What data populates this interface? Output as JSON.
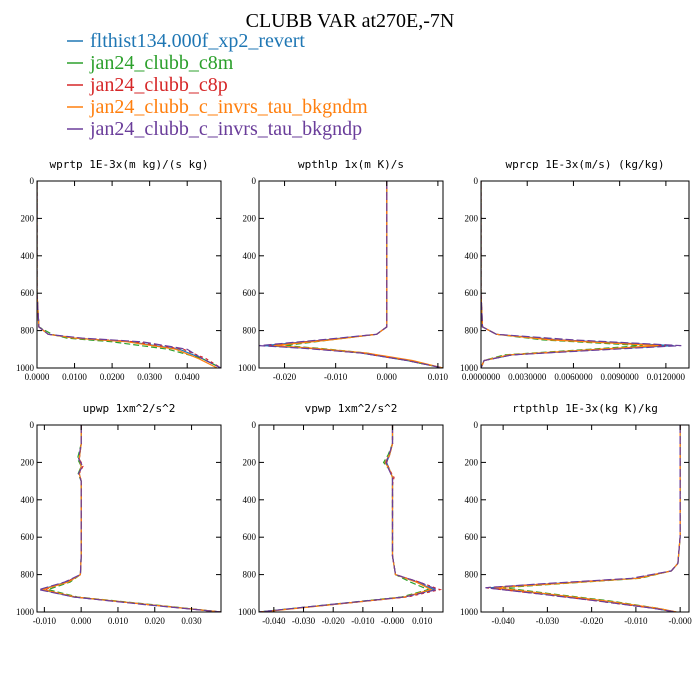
{
  "title": "CLUBB VAR at270E,-7N",
  "legend": [
    {
      "label": "flthist134.000f_xp2_revert",
      "color": "#1f77b4",
      "dash": ""
    },
    {
      "label": "jan24_clubb_c8m",
      "color": "#2ca02c",
      "dash": "6,3"
    },
    {
      "label": "jan24_clubb_c8p",
      "color": "#d62728",
      "dash": "3,3"
    },
    {
      "label": "jan24_clubb_c_invrs_tau_bkgndm",
      "color": "#ff7f0e",
      "dash": ""
    },
    {
      "label": "jan24_clubb_c_invrs_tau_bkgndp",
      "color": "#6a3d9a",
      "dash": "8,3"
    }
  ],
  "chart_data": [
    {
      "type": "line",
      "title": "wprtp  1E-3x(m kg)/(s kg)",
      "xlim": [
        0.0,
        0.049
      ],
      "ylim": [
        1000,
        0
      ],
      "xticks": [
        0.0,
        0.01,
        0.02,
        0.03,
        0.04
      ],
      "xtick_labels": [
        "0.0000",
        "0.0100",
        "0.0200",
        "0.0300",
        "0.0400"
      ],
      "yticks": [
        0,
        200,
        400,
        600,
        800,
        1000
      ],
      "series": [
        {
          "y": [
            0,
            200,
            400,
            600,
            780,
            820,
            840,
            860,
            900,
            950,
            1000
          ],
          "x": [
            0.0,
            0.0,
            0.0,
            0.0,
            0.0005,
            0.003,
            0.01,
            0.025,
            0.038,
            0.044,
            0.049
          ]
        },
        {
          "y": [
            0,
            200,
            400,
            600,
            780,
            820,
            840,
            860,
            900,
            950,
            1000
          ],
          "x": [
            0.0,
            0.0,
            0.0,
            0.0,
            0.0005,
            0.004,
            0.008,
            0.02,
            0.035,
            0.044,
            0.049
          ]
        },
        {
          "y": [
            0,
            200,
            400,
            600,
            780,
            820,
            840,
            860,
            900,
            950,
            1000
          ],
          "x": [
            0.0,
            0.0,
            0.0,
            0.0,
            0.0005,
            0.003,
            0.011,
            0.026,
            0.039,
            0.045,
            0.049
          ]
        },
        {
          "y": [
            0,
            200,
            400,
            600,
            780,
            820,
            840,
            860,
            900,
            950,
            1000
          ],
          "x": [
            0.0,
            0.0,
            0.0,
            0.0,
            0.0005,
            0.003,
            0.01,
            0.024,
            0.037,
            0.043,
            0.048
          ]
        },
        {
          "y": [
            0,
            200,
            400,
            600,
            780,
            820,
            840,
            860,
            900,
            950,
            1000
          ],
          "x": [
            0.0,
            0.0,
            0.0,
            0.0,
            0.0005,
            0.003,
            0.012,
            0.028,
            0.04,
            0.044,
            0.049
          ]
        }
      ]
    },
    {
      "type": "line",
      "title": "wpthlp  1x(m K)/s",
      "xlim": [
        -0.025,
        0.011
      ],
      "ylim": [
        1000,
        0
      ],
      "xticks": [
        -0.02,
        -0.01,
        0.0,
        0.01
      ],
      "xtick_labels": [
        "-0.020",
        "-0.010",
        "0.000",
        "0.010"
      ],
      "yticks": [
        0,
        200,
        400,
        600,
        800,
        1000
      ],
      "series": [
        {
          "y": [
            0,
            200,
            400,
            600,
            780,
            820,
            850,
            880,
            895,
            920,
            960,
            1000
          ],
          "x": [
            0.0,
            0.0,
            0.0,
            0.0,
            0.0,
            -0.002,
            -0.012,
            -0.024,
            -0.015,
            -0.005,
            0.004,
            0.011
          ]
        },
        {
          "y": [
            0,
            200,
            400,
            600,
            780,
            820,
            850,
            880,
            895,
            920,
            960,
            1000
          ],
          "x": [
            0.0,
            0.0,
            0.0,
            0.0,
            0.0,
            -0.002,
            -0.011,
            -0.02,
            -0.013,
            -0.004,
            0.004,
            0.011
          ]
        },
        {
          "y": [
            0,
            200,
            400,
            600,
            780,
            820,
            850,
            880,
            895,
            920,
            960,
            1000
          ],
          "x": [
            0.0,
            0.0,
            0.0,
            0.0,
            0.0,
            -0.002,
            -0.012,
            -0.023,
            -0.015,
            -0.005,
            0.004,
            0.011
          ]
        },
        {
          "y": [
            0,
            200,
            400,
            600,
            780,
            820,
            850,
            880,
            895,
            920,
            960,
            1000
          ],
          "x": [
            0.0,
            0.0,
            0.0,
            0.0,
            0.0,
            -0.002,
            -0.011,
            -0.022,
            -0.014,
            -0.004,
            0.005,
            0.011
          ]
        },
        {
          "y": [
            0,
            200,
            400,
            600,
            780,
            820,
            850,
            880,
            895,
            920,
            960,
            1000
          ],
          "x": [
            0.0,
            0.0,
            0.0,
            0.0,
            0.0,
            -0.002,
            -0.013,
            -0.025,
            -0.016,
            -0.005,
            0.004,
            0.011
          ]
        }
      ]
    },
    {
      "type": "line",
      "title": "wprcp  1E-3x(m/s) (kg/kg)",
      "xlim": [
        0.0,
        0.0135
      ],
      "ylim": [
        1000,
        0
      ],
      "xticks": [
        0.0,
        0.003,
        0.006,
        0.009,
        0.012
      ],
      "xtick_labels": [
        "0.0000000",
        "0.0030000",
        "0.0060000",
        "0.0090000",
        "0.0120000"
      ],
      "yticks": [
        0,
        200,
        400,
        600,
        800,
        1000
      ],
      "series": [
        {
          "y": [
            0,
            200,
            400,
            600,
            780,
            820,
            850,
            880,
            900,
            930,
            960,
            1000
          ],
          "x": [
            0.0,
            0.0,
            0.0,
            0.0,
            0.0001,
            0.001,
            0.005,
            0.0125,
            0.008,
            0.002,
            0.0002,
            0.0
          ]
        },
        {
          "y": [
            0,
            200,
            400,
            600,
            780,
            820,
            850,
            880,
            900,
            930,
            960,
            1000
          ],
          "x": [
            0.0,
            0.0,
            0.0,
            0.0,
            0.0001,
            0.001,
            0.004,
            0.0105,
            0.007,
            0.0015,
            0.0002,
            0.0
          ]
        },
        {
          "y": [
            0,
            200,
            400,
            600,
            780,
            820,
            850,
            880,
            900,
            930,
            960,
            1000
          ],
          "x": [
            0.0,
            0.0,
            0.0,
            0.0,
            0.0001,
            0.001,
            0.005,
            0.012,
            0.008,
            0.002,
            0.0002,
            0.0
          ]
        },
        {
          "y": [
            0,
            200,
            400,
            600,
            780,
            820,
            850,
            880,
            900,
            930,
            960,
            1000
          ],
          "x": [
            0.0,
            0.0,
            0.0,
            0.0,
            0.0001,
            0.001,
            0.0045,
            0.0115,
            0.0075,
            0.0018,
            0.0002,
            0.0
          ]
        },
        {
          "y": [
            0,
            200,
            400,
            600,
            780,
            820,
            850,
            880,
            900,
            930,
            960,
            1000
          ],
          "x": [
            0.0,
            0.0,
            0.0,
            0.0,
            0.0001,
            0.001,
            0.006,
            0.013,
            0.0085,
            0.002,
            0.0002,
            0.0
          ]
        }
      ]
    },
    {
      "type": "line",
      "title": "upwp  1xm^2/s^2",
      "xlim": [
        -0.012,
        0.038
      ],
      "ylim": [
        1000,
        0
      ],
      "xticks": [
        -0.01,
        0.0,
        0.01,
        0.02,
        0.03
      ],
      "xtick_labels": [
        "-0.010",
        "0.000",
        "0.010",
        "0.020",
        "0.030"
      ],
      "yticks": [
        0,
        200,
        400,
        600,
        800,
        1000
      ],
      "series": [
        {
          "y": [
            0,
            100,
            180,
            220,
            260,
            300,
            500,
            700,
            800,
            840,
            880,
            920,
            960,
            1000
          ],
          "x": [
            0.0,
            0.0,
            -0.0005,
            0.0,
            -0.0005,
            0.0,
            0.0,
            0.0,
            -0.0002,
            -0.004,
            -0.011,
            -0.002,
            0.018,
            0.038
          ]
        },
        {
          "y": [
            0,
            100,
            180,
            220,
            260,
            300,
            500,
            700,
            800,
            840,
            880,
            920,
            960,
            1000
          ],
          "x": [
            0.0,
            0.0,
            -0.001,
            0.0,
            -0.0008,
            0.0,
            0.0,
            0.0,
            -0.0002,
            -0.003,
            -0.009,
            -0.001,
            0.019,
            0.038
          ]
        },
        {
          "y": [
            0,
            100,
            180,
            220,
            260,
            300,
            500,
            700,
            800,
            840,
            880,
            920,
            960,
            1000
          ],
          "x": [
            0.0,
            0.0,
            -0.0005,
            0.0005,
            -0.0005,
            0.0,
            0.0,
            0.0,
            -0.0002,
            -0.004,
            -0.01,
            -0.002,
            0.018,
            0.038
          ]
        },
        {
          "y": [
            0,
            100,
            180,
            220,
            260,
            300,
            500,
            700,
            800,
            840,
            880,
            920,
            960,
            1000
          ],
          "x": [
            0.0,
            0.0,
            -0.0005,
            0.0,
            -0.0005,
            0.0,
            0.0,
            0.0,
            -0.0002,
            -0.0035,
            -0.0105,
            -0.0015,
            0.018,
            0.038
          ]
        },
        {
          "y": [
            0,
            100,
            180,
            220,
            260,
            300,
            500,
            700,
            800,
            840,
            880,
            920,
            960,
            1000
          ],
          "x": [
            0.0,
            0.0,
            -0.0007,
            0.0004,
            -0.0007,
            0.0,
            0.0,
            0.0,
            -0.0002,
            -0.0045,
            -0.0115,
            -0.002,
            0.017,
            0.038
          ]
        }
      ]
    },
    {
      "type": "line",
      "title": "vpwp  1xm^2/s^2",
      "xlim": [
        -0.045,
        0.017
      ],
      "ylim": [
        1000,
        0
      ],
      "xticks": [
        -0.04,
        -0.03,
        -0.02,
        -0.01,
        0.0,
        0.01
      ],
      "xtick_labels": [
        "-0.040",
        "-0.030",
        "-0.020",
        "-0.010",
        "-0.000",
        "0.010"
      ],
      "yticks": [
        0,
        200,
        400,
        600,
        800,
        1000
      ],
      "series": [
        {
          "y": [
            0,
            100,
            160,
            200,
            240,
            280,
            320,
            500,
            700,
            800,
            840,
            880,
            920,
            960,
            1000
          ],
          "x": [
            0.0,
            0.0,
            -0.001,
            -0.002,
            -0.001,
            0.0,
            0.0,
            0.0,
            0.0,
            0.001,
            0.008,
            0.014,
            0.004,
            -0.02,
            -0.045
          ]
        },
        {
          "y": [
            0,
            100,
            160,
            200,
            240,
            280,
            320,
            500,
            700,
            800,
            840,
            880,
            920,
            960,
            1000
          ],
          "x": [
            0.0,
            0.0,
            -0.0015,
            -0.003,
            -0.001,
            0.0,
            0.0,
            0.0,
            0.0,
            0.001,
            0.006,
            0.012,
            0.003,
            -0.021,
            -0.045
          ]
        },
        {
          "y": [
            0,
            100,
            160,
            200,
            240,
            280,
            320,
            500,
            700,
            800,
            840,
            880,
            920,
            960,
            1000
          ],
          "x": [
            0.0,
            0.0,
            -0.001,
            -0.002,
            -0.001,
            0.0005,
            0.0,
            0.0,
            0.0,
            0.001,
            0.009,
            0.016,
            0.005,
            -0.02,
            -0.045
          ]
        },
        {
          "y": [
            0,
            100,
            160,
            200,
            240,
            280,
            320,
            500,
            700,
            800,
            840,
            880,
            920,
            960,
            1000
          ],
          "x": [
            0.0,
            0.0,
            -0.001,
            -0.0025,
            -0.001,
            0.0,
            0.0,
            0.0,
            0.0,
            0.001,
            0.008,
            0.013,
            0.004,
            -0.02,
            -0.044
          ]
        },
        {
          "y": [
            0,
            100,
            160,
            200,
            240,
            280,
            320,
            500,
            700,
            800,
            840,
            880,
            920,
            960,
            1000
          ],
          "x": [
            0.0,
            0.0,
            -0.0012,
            -0.0022,
            -0.0012,
            0.0,
            0.0,
            0.0,
            0.0,
            0.001,
            0.009,
            0.015,
            0.004,
            -0.021,
            -0.045
          ]
        }
      ]
    },
    {
      "type": "line",
      "title": "rtpthlp  1E-3x(kg K)/kg",
      "xlim": [
        -0.045,
        0.002
      ],
      "ylim": [
        1000,
        0
      ],
      "xticks": [
        -0.04,
        -0.03,
        -0.02,
        -0.01,
        0.0
      ],
      "xtick_labels": [
        "-0.040",
        "-0.030",
        "-0.020",
        "-0.010",
        "-0.000"
      ],
      "yticks": [
        0,
        200,
        400,
        600,
        800,
        1000
      ],
      "series": [
        {
          "y": [
            0,
            200,
            400,
            600,
            740,
            780,
            820,
            850,
            870,
            900,
            940,
            980,
            1000
          ],
          "x": [
            0.0,
            0.0,
            0.0,
            0.0,
            -0.0005,
            -0.002,
            -0.01,
            -0.03,
            -0.043,
            -0.032,
            -0.018,
            -0.006,
            -0.001
          ]
        },
        {
          "y": [
            0,
            200,
            400,
            600,
            740,
            780,
            820,
            850,
            870,
            900,
            940,
            980,
            1000
          ],
          "x": [
            0.0,
            0.0,
            0.0,
            0.0,
            -0.0005,
            -0.002,
            -0.009,
            -0.028,
            -0.04,
            -0.03,
            -0.016,
            -0.005,
            -0.001
          ]
        },
        {
          "y": [
            0,
            200,
            400,
            600,
            740,
            780,
            820,
            850,
            870,
            900,
            940,
            980,
            1000
          ],
          "x": [
            0.0,
            0.0,
            0.0,
            0.0,
            -0.0005,
            -0.002,
            -0.01,
            -0.031,
            -0.044,
            -0.033,
            -0.019,
            -0.006,
            -0.001
          ]
        },
        {
          "y": [
            0,
            200,
            400,
            600,
            740,
            780,
            820,
            850,
            870,
            900,
            940,
            980,
            1000
          ],
          "x": [
            0.0,
            0.0,
            0.0,
            0.0,
            -0.0005,
            -0.002,
            -0.0095,
            -0.029,
            -0.042,
            -0.031,
            -0.017,
            -0.005,
            -0.0008
          ]
        },
        {
          "y": [
            0,
            200,
            400,
            600,
            740,
            780,
            820,
            850,
            870,
            900,
            940,
            980,
            1000
          ],
          "x": [
            0.0,
            0.0,
            0.0,
            0.0,
            -0.0005,
            -0.002,
            -0.011,
            -0.032,
            -0.044,
            -0.033,
            -0.019,
            -0.006,
            -0.001
          ]
        }
      ]
    }
  ]
}
